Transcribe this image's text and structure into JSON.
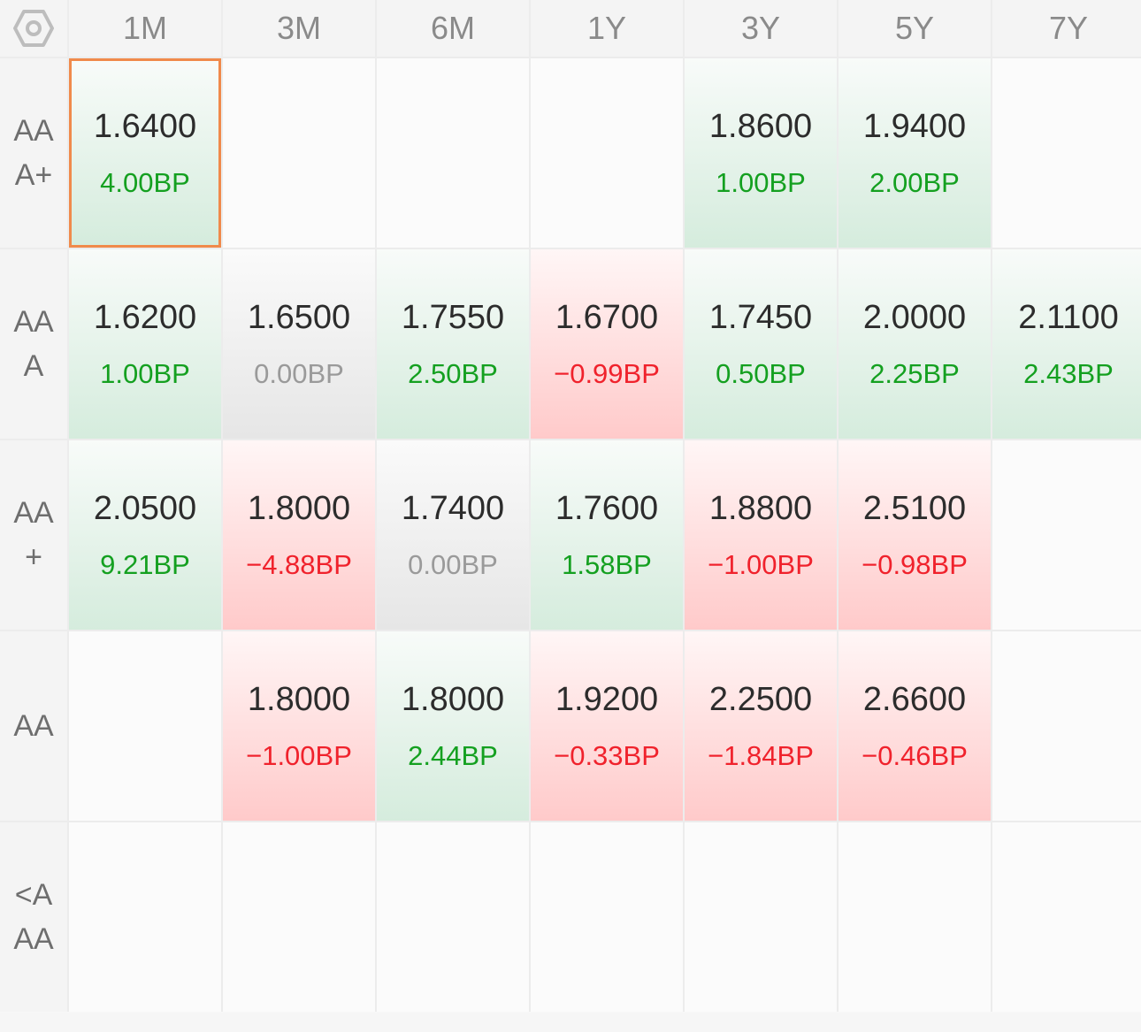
{
  "table": {
    "settings_icon": "settings-hexagon-icon",
    "columns": [
      "1M",
      "3M",
      "6M",
      "1Y",
      "3Y",
      "5Y",
      "7Y"
    ],
    "rows": [
      {
        "label": "AAA+",
        "cells": [
          {
            "rate": "1.6400",
            "change": "4.00BP",
            "trend": "up",
            "selected": true
          },
          null,
          null,
          null,
          {
            "rate": "1.8600",
            "change": "1.00BP",
            "trend": "up"
          },
          {
            "rate": "1.9400",
            "change": "2.00BP",
            "trend": "up"
          },
          null
        ]
      },
      {
        "label": "AAA",
        "cells": [
          {
            "rate": "1.6200",
            "change": "1.00BP",
            "trend": "up"
          },
          {
            "rate": "1.6500",
            "change": "0.00BP",
            "trend": "flat"
          },
          {
            "rate": "1.7550",
            "change": "2.50BP",
            "trend": "up"
          },
          {
            "rate": "1.6700",
            "change": "−0.99BP",
            "trend": "down"
          },
          {
            "rate": "1.7450",
            "change": "0.50BP",
            "trend": "up"
          },
          {
            "rate": "2.0000",
            "change": "2.25BP",
            "trend": "up"
          },
          {
            "rate": "2.1100",
            "change": "2.43BP",
            "trend": "up"
          }
        ]
      },
      {
        "label": "AA+",
        "cells": [
          {
            "rate": "2.0500",
            "change": "9.21BP",
            "trend": "up"
          },
          {
            "rate": "1.8000",
            "change": "−4.88BP",
            "trend": "down"
          },
          {
            "rate": "1.7400",
            "change": "0.00BP",
            "trend": "flat"
          },
          {
            "rate": "1.7600",
            "change": "1.58BP",
            "trend": "up"
          },
          {
            "rate": "1.8800",
            "change": "−1.00BP",
            "trend": "down"
          },
          {
            "rate": "2.5100",
            "change": "−0.98BP",
            "trend": "down"
          },
          null
        ]
      },
      {
        "label": "AA",
        "cells": [
          null,
          {
            "rate": "1.8000",
            "change": "−1.00BP",
            "trend": "down"
          },
          {
            "rate": "1.8000",
            "change": "2.44BP",
            "trend": "up"
          },
          {
            "rate": "1.9200",
            "change": "−0.33BP",
            "trend": "down"
          },
          {
            "rate": "2.2500",
            "change": "−1.84BP",
            "trend": "down"
          },
          {
            "rate": "2.6600",
            "change": "−0.46BP",
            "trend": "down"
          },
          null
        ]
      },
      {
        "label": "<AAA",
        "cells": [
          null,
          null,
          null,
          null,
          null,
          null,
          null
        ]
      }
    ],
    "colors": {
      "up": "#14a020",
      "down": "#f0222c",
      "flat": "#9a9a9a",
      "selected_border": "#f08a4b"
    }
  }
}
